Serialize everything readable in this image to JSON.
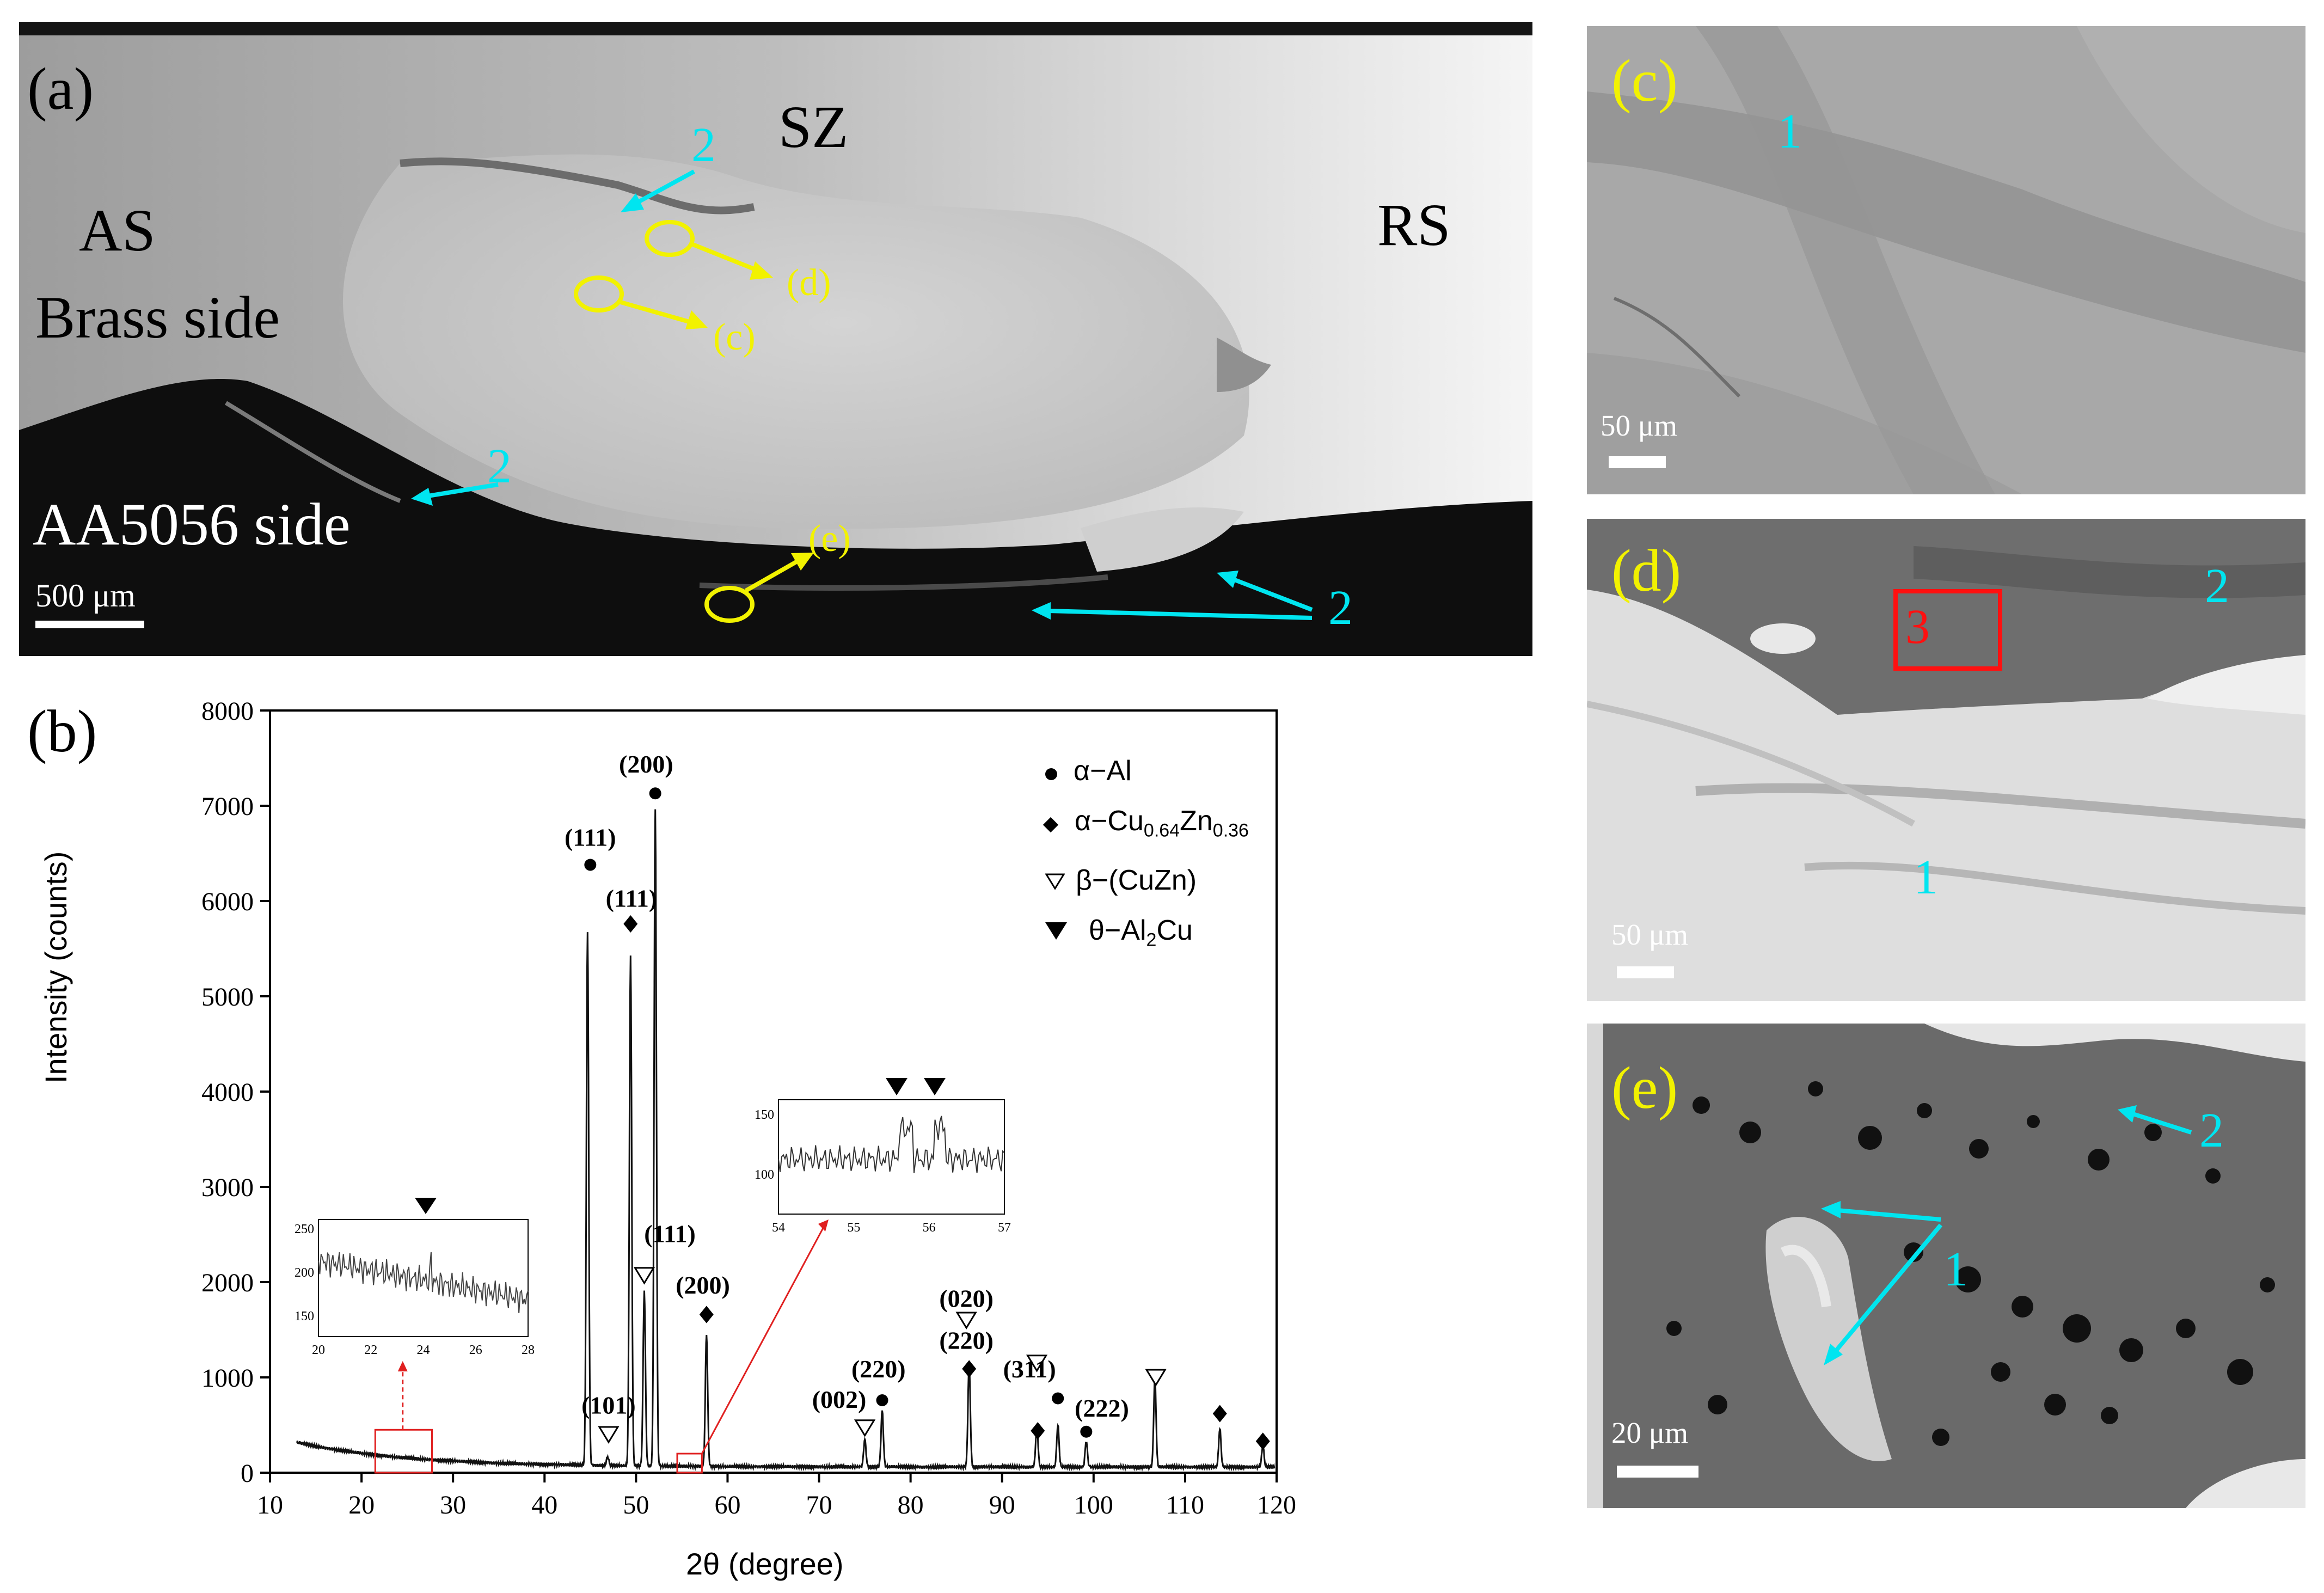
{
  "panel_a": {
    "label": "(a)",
    "zones": {
      "sz": "SZ",
      "as": "AS",
      "brass_side": "Brass side",
      "rs": "RS",
      "aa_side": "AA5056 side"
    },
    "scale_bar": "500 μm",
    "callouts": {
      "d": "(d)",
      "c": "(c)",
      "e": "(e)"
    },
    "region_labels": {
      "top": "2",
      "left": "2",
      "bottom_right": "2"
    }
  },
  "panel_b": {
    "label": "(b)",
    "legend": [
      {
        "symbol": "circle",
        "text": "α−Al"
      },
      {
        "symbol": "diamond",
        "text": "α−Cu",
        "sub1": "0.64",
        "mid": "Zn",
        "sub2": "0.36"
      },
      {
        "symbol": "open-triangle",
        "text": "β−(CuZn)"
      },
      {
        "symbol": "filled-triangle",
        "text": "θ−Al",
        "sub1": "2",
        "mid": "Cu"
      }
    ],
    "inset1": {
      "xticks": [
        "20",
        "22",
        "24",
        "26",
        "28"
      ],
      "yticks": [
        "150",
        "200",
        "250"
      ]
    },
    "inset2": {
      "xticks": [
        "54",
        "55",
        "56",
        "57"
      ],
      "yticks": [
        "100",
        "150"
      ]
    }
  },
  "chart_data": {
    "type": "line",
    "xlabel": "2θ (degree)",
    "ylabel": "Intensity (counts)",
    "xlim": [
      10,
      120
    ],
    "ylim": [
      0,
      8000
    ],
    "xticks": [
      "10",
      "20",
      "30",
      "40",
      "50",
      "60",
      "70",
      "80",
      "90",
      "100",
      "110",
      "120"
    ],
    "yticks": [
      "0",
      "1000",
      "2000",
      "3000",
      "4000",
      "5000",
      "6000",
      "7000",
      "8000"
    ],
    "peaks": [
      {
        "x": 44.7,
        "y": 5650
      },
      {
        "x": 46.9,
        "y": 150
      },
      {
        "x": 49.4,
        "y": 5400
      },
      {
        "x": 50.9,
        "y": 1900
      },
      {
        "x": 52.1,
        "y": 6950
      },
      {
        "x": 57.7,
        "y": 1450
      },
      {
        "x": 75.0,
        "y": 350
      },
      {
        "x": 76.9,
        "y": 650
      },
      {
        "x": 86.4,
        "y": 1150
      },
      {
        "x": 93.8,
        "y": 500
      },
      {
        "x": 96.1,
        "y": 500
      },
      {
        "x": 99.2,
        "y": 330
      },
      {
        "x": 106.7,
        "y": 1000
      },
      {
        "x": 113.8,
        "y": 460
      },
      {
        "x": 118.5,
        "y": 280
      }
    ],
    "annotations": [
      {
        "text": "(111)",
        "x": 45,
        "y": 6580
      },
      {
        "text": "(200)",
        "x": 51.1,
        "y": 7350
      },
      {
        "text": "(111)",
        "x": 49.5,
        "y": 5940
      },
      {
        "text": "(111)",
        "x": 53.7,
        "y": 2420
      },
      {
        "text": "(200)",
        "x": 57.3,
        "y": 1880
      },
      {
        "text": "(101)",
        "x": 47,
        "y": 620
      },
      {
        "text": "(002)",
        "x": 72.2,
        "y": 680
      },
      {
        "text": "(220)",
        "x": 76.5,
        "y": 1000
      },
      {
        "text": "(020)",
        "x": 86.1,
        "y": 1740
      },
      {
        "text": "(220)",
        "x": 86.1,
        "y": 1300
      },
      {
        "text": "(311)",
        "x": 93,
        "y": 1000
      },
      {
        "text": "(222)",
        "x": 100.9,
        "y": 590
      }
    ]
  },
  "panel_c": {
    "label": "(c)",
    "region": "1",
    "scale_bar": "50 μm"
  },
  "panel_d": {
    "label": "(d)",
    "region_box": "3",
    "region_top": "2",
    "region_bottom": "1",
    "scale_bar": "50 μm"
  },
  "panel_e": {
    "label": "(e)",
    "region_top": "2",
    "region_mid": "1",
    "scale_bar": "20 μm"
  },
  "colors": {
    "cyan": "#00e5f0",
    "yellow": "#f2f200",
    "red": "#ff1010"
  }
}
